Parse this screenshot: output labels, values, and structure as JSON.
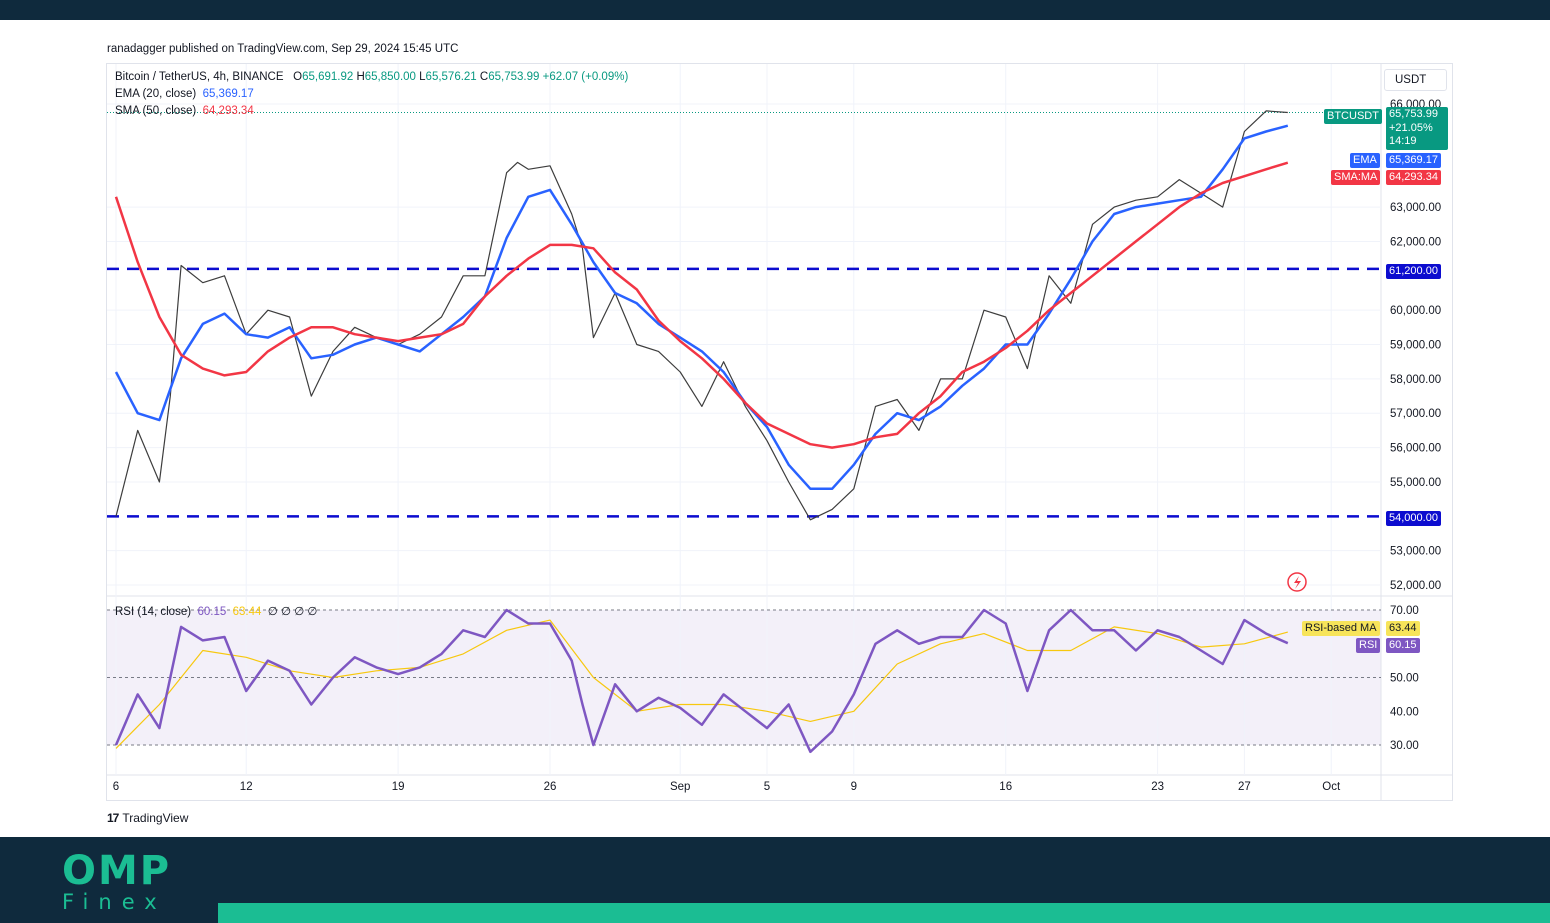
{
  "header": {
    "published": "ranadagger published on TradingView.com, Sep 29, 2024 15:45 UTC"
  },
  "legend": {
    "symbol": "Bitcoin / TetherUS, 4h, BINANCE",
    "o_label": "O",
    "o": "65,691.92",
    "h_label": "H",
    "h": "65,850.00",
    "l_label": "L",
    "l": "65,576.21",
    "c_label": "C",
    "c": "65,753.99",
    "change": "+62.07 (+0.09%)",
    "ema_label": "EMA (20, close)",
    "ema_value": "65,369.17",
    "sma_label": "SMA (50, close)",
    "sma_value": "64,293.34",
    "rsi_label": "RSI (14, close)",
    "rsi_value": "60.15",
    "rsi_ma_value": "63.44",
    "rsi_na": "∅ ∅ ∅ ∅"
  },
  "price_axis": {
    "currency": "USDT",
    "ticks": [
      "66,000.00",
      "63,000.00",
      "62,000.00",
      "60,000.00",
      "59,000.00",
      "58,000.00",
      "57,000.00",
      "56,000.00",
      "55,000.00",
      "53,000.00",
      "52,000.00"
    ],
    "tick_values": [
      66000,
      63000,
      62000,
      60000,
      59000,
      58000,
      57000,
      56000,
      55000,
      53000,
      52000
    ]
  },
  "rsi_axis": {
    "ticks": [
      "70.00",
      "50.00",
      "40.00",
      "30.00"
    ],
    "tick_values": [
      70,
      50,
      40,
      30
    ]
  },
  "time_axis": {
    "labels": [
      "6",
      "12",
      "19",
      "26",
      "Sep",
      "5",
      "9",
      "16",
      "23",
      "27",
      "Oct"
    ],
    "label_days": [
      6,
      12,
      19,
      26,
      32,
      36,
      40,
      47,
      54,
      58,
      62
    ]
  },
  "tags": {
    "btc_symbol": "BTCUSDT",
    "btc_price": "65,753.99",
    "btc_change": "+21.05%",
    "btc_countdown": "14:19",
    "ema_label": "EMA",
    "ema_value": "65,369.17",
    "sma_label": "SMA:MA",
    "sma_value": "64,293.34",
    "level_high": "61,200.00",
    "level_low": "54,000.00",
    "rsi_ma_label": "RSI-based MA",
    "rsi_ma_value": "63.44",
    "rsi_label": "RSI",
    "rsi_value": "60.15"
  },
  "colors": {
    "up": "#089981",
    "down": "#f23645",
    "ema": "#2962ff",
    "sma": "#f23645",
    "rsi": "#7e57c2",
    "rsi_ma": "#f7c80f",
    "level": "#0c0ccf",
    "brand": "#1bbd93",
    "navy": "#0f2a3d"
  },
  "brand": {
    "tradingview": "TradingView",
    "omp": "OMP",
    "finex": "Finex"
  },
  "chart_data": {
    "type": "line",
    "title": "Bitcoin / TetherUS, 4h, BINANCE",
    "x_unit": "day (1 = Aug 1, 2024)",
    "ylim": [
      52000,
      66500
    ],
    "horizontal_levels": [
      61200,
      54000
    ],
    "series": [
      {
        "name": "Bitcoin / TetherUS",
        "x": [
          6,
          7,
          8,
          8.5,
          9,
          10,
          11,
          12,
          13,
          14,
          15,
          16,
          17,
          18,
          19,
          20,
          21,
          22,
          23,
          24,
          24.5,
          25,
          26,
          27,
          27.5,
          28,
          29,
          30,
          31,
          32,
          33,
          34,
          35,
          36,
          37,
          38,
          39,
          40,
          41,
          42,
          43,
          44,
          45,
          46,
          47,
          48,
          49,
          50,
          51,
          52,
          53,
          54,
          55,
          56,
          57,
          58,
          59,
          60
        ],
        "values": [
          54000,
          56500,
          55000,
          57500,
          61300,
          60800,
          61000,
          59300,
          60000,
          59800,
          57500,
          58800,
          59500,
          59200,
          59000,
          59300,
          59800,
          61000,
          61000,
          64000,
          64300,
          64100,
          64200,
          62800,
          61800,
          59200,
          60500,
          59000,
          58800,
          58200,
          57200,
          58500,
          57200,
          56200,
          55000,
          53900,
          54200,
          54800,
          57200,
          57400,
          56500,
          58000,
          58000,
          60000,
          59800,
          58300,
          61000,
          60200,
          62500,
          63000,
          63200,
          63300,
          63800,
          63400,
          63000,
          65200,
          65800,
          65754
        ]
      },
      {
        "name": "EMA (20, close)",
        "x": [
          6,
          7,
          8,
          9,
          10,
          11,
          12,
          13,
          14,
          15,
          16,
          17,
          18,
          19,
          20,
          21,
          22,
          23,
          24,
          25,
          26,
          27,
          28,
          29,
          30,
          31,
          32,
          33,
          34,
          35,
          36,
          37,
          38,
          39,
          40,
          41,
          42,
          43,
          44,
          45,
          46,
          47,
          48,
          49,
          50,
          51,
          52,
          53,
          54,
          55,
          56,
          57,
          58,
          59,
          60
        ],
        "values": [
          58200,
          57000,
          56800,
          58600,
          59600,
          59900,
          59300,
          59200,
          59500,
          58600,
          58700,
          59000,
          59200,
          59000,
          58800,
          59300,
          59800,
          60400,
          62100,
          63300,
          63500,
          62500,
          61400,
          60500,
          60200,
          59600,
          59200,
          58800,
          58200,
          57300,
          56600,
          55500,
          54800,
          54800,
          55500,
          56400,
          57000,
          56800,
          57200,
          57800,
          58300,
          59000,
          59000,
          59900,
          60900,
          62000,
          62800,
          63000,
          63100,
          63200,
          63300,
          64100,
          65000,
          65200,
          65369
        ]
      },
      {
        "name": "SMA (50, close)",
        "x": [
          6,
          7,
          8,
          9,
          10,
          11,
          12,
          13,
          14,
          15,
          16,
          17,
          18,
          19,
          20,
          21,
          22,
          23,
          24,
          25,
          26,
          27,
          28,
          29,
          30,
          31,
          32,
          33,
          34,
          35,
          36,
          37,
          38,
          39,
          40,
          41,
          42,
          43,
          44,
          45,
          46,
          47,
          48,
          49,
          50,
          51,
          52,
          53,
          54,
          55,
          56,
          57,
          58,
          59,
          60
        ],
        "values": [
          63300,
          61400,
          59800,
          58700,
          58300,
          58100,
          58200,
          58800,
          59200,
          59500,
          59500,
          59300,
          59200,
          59100,
          59200,
          59300,
          59600,
          60400,
          61000,
          61500,
          61900,
          61900,
          61800,
          61100,
          60600,
          59700,
          59100,
          58600,
          58000,
          57300,
          56700,
          56400,
          56100,
          56000,
          56100,
          56300,
          56400,
          57000,
          57500,
          58200,
          58500,
          58900,
          59400,
          60000,
          60500,
          61000,
          61500,
          62000,
          62500,
          63000,
          63400,
          63700,
          63900,
          64100,
          64293
        ]
      }
    ],
    "rsi": {
      "name": "RSI (14, close)",
      "ylim": [
        20,
        75
      ],
      "bands": [
        70,
        50,
        30
      ],
      "series": [
        {
          "name": "RSI",
          "x": [
            6,
            7,
            8,
            8.5,
            9,
            10,
            11,
            12,
            13,
            14,
            15,
            16,
            17,
            18,
            19,
            20,
            21,
            22,
            23,
            24,
            25,
            26,
            27,
            27.5,
            28,
            29,
            30,
            31,
            32,
            33,
            34,
            35,
            36,
            37,
            38,
            39,
            40,
            41,
            42,
            43,
            44,
            45,
            46,
            47,
            48,
            49,
            50,
            51,
            52,
            53,
            54,
            55,
            56,
            57,
            58,
            59,
            60
          ],
          "values": [
            30,
            45,
            35,
            50,
            65,
            61,
            62,
            46,
            55,
            52,
            42,
            50,
            56,
            53,
            51,
            53,
            57,
            64,
            62,
            70,
            66,
            66,
            55,
            42,
            30,
            48,
            40,
            44,
            41,
            36,
            45,
            40,
            35,
            42,
            28,
            34,
            45,
            60,
            64,
            60,
            62,
            62,
            70,
            66,
            46,
            64,
            70,
            64,
            64,
            58,
            64,
            62,
            58,
            54,
            67,
            63,
            60.15
          ]
        },
        {
          "name": "RSI-based MA",
          "x": [
            6,
            8,
            10,
            12,
            14,
            16,
            18,
            20,
            22,
            24,
            26,
            28,
            30,
            32,
            34,
            36,
            38,
            40,
            42,
            44,
            46,
            48,
            50,
            52,
            54,
            56,
            58,
            60
          ],
          "values": [
            29,
            42,
            58,
            56,
            52,
            50,
            52,
            53,
            57,
            64,
            67,
            50,
            40,
            42,
            42,
            40,
            37,
            40,
            54,
            60,
            63,
            58,
            58,
            65,
            63,
            59,
            60,
            63.44
          ]
        }
      ]
    }
  }
}
